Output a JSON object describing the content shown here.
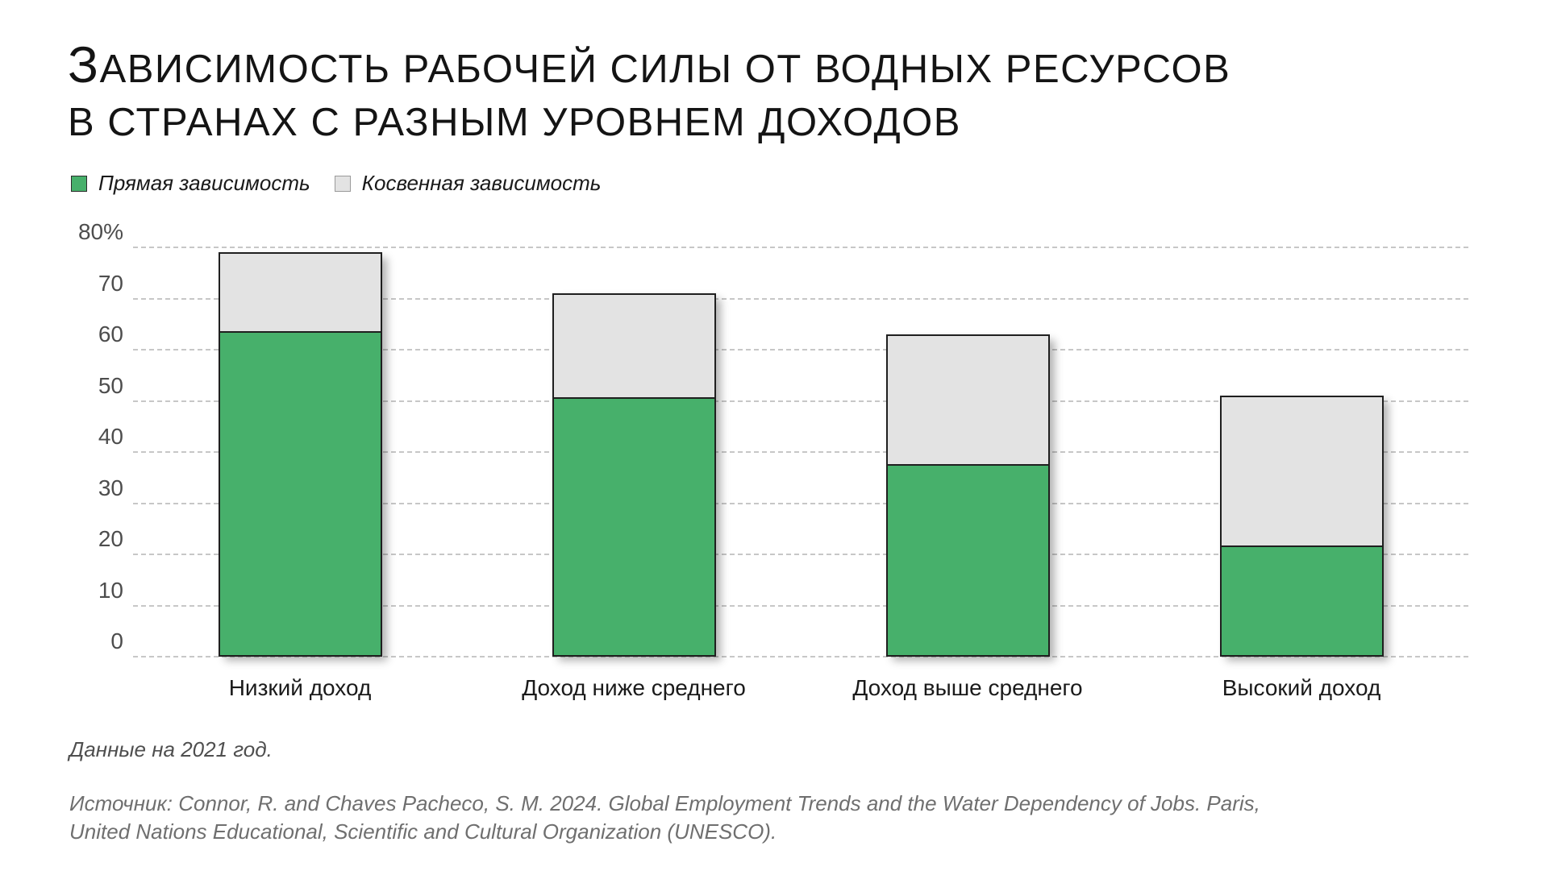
{
  "title": {
    "line1": "Зависимость рабочей силы от водных ресурсов",
    "line2": "в странах с разным уровнем доходов"
  },
  "legend": [
    {
      "label": "Прямая зависимость",
      "color": "#47b06b"
    },
    {
      "label": "Косвенная зависимость",
      "color": "#e3e3e3"
    }
  ],
  "footnote": "Данные на 2021 год.",
  "source": {
    "line1": "Источник: Connor, R. and Chaves Pacheco, S. M. 2024. Global Employment Trends and the Water Dependency of Jobs. Paris,",
    "line2": "United Nations Educational, Scientific and Cultural Organization (UNESCO)."
  },
  "chart_data": {
    "type": "bar",
    "stacked": true,
    "title": "Зависимость рабочей силы от водных ресурсов в странах с разным уровнем доходов",
    "categories": [
      "Низкий доход",
      "Доход ниже среднего",
      "Доход выше среднего",
      "Высокий доход"
    ],
    "series": [
      {
        "name": "Прямая зависимость",
        "color": "#47b06b",
        "values": [
          64,
          51,
          38,
          22
        ]
      },
      {
        "name": "Косвенная зависимость",
        "color": "#e3e3e3",
        "values": [
          15,
          20,
          25,
          29
        ]
      }
    ],
    "totals": [
      79,
      71,
      63,
      51
    ],
    "unit": "%",
    "ylim": [
      0,
      80
    ],
    "ytick_interval": 10,
    "ytick_labels": [
      "0",
      "10",
      "20",
      "30",
      "40",
      "50",
      "60",
      "70",
      "80%"
    ],
    "grid": "horizontal-dashed",
    "legend_position": "top-left"
  }
}
